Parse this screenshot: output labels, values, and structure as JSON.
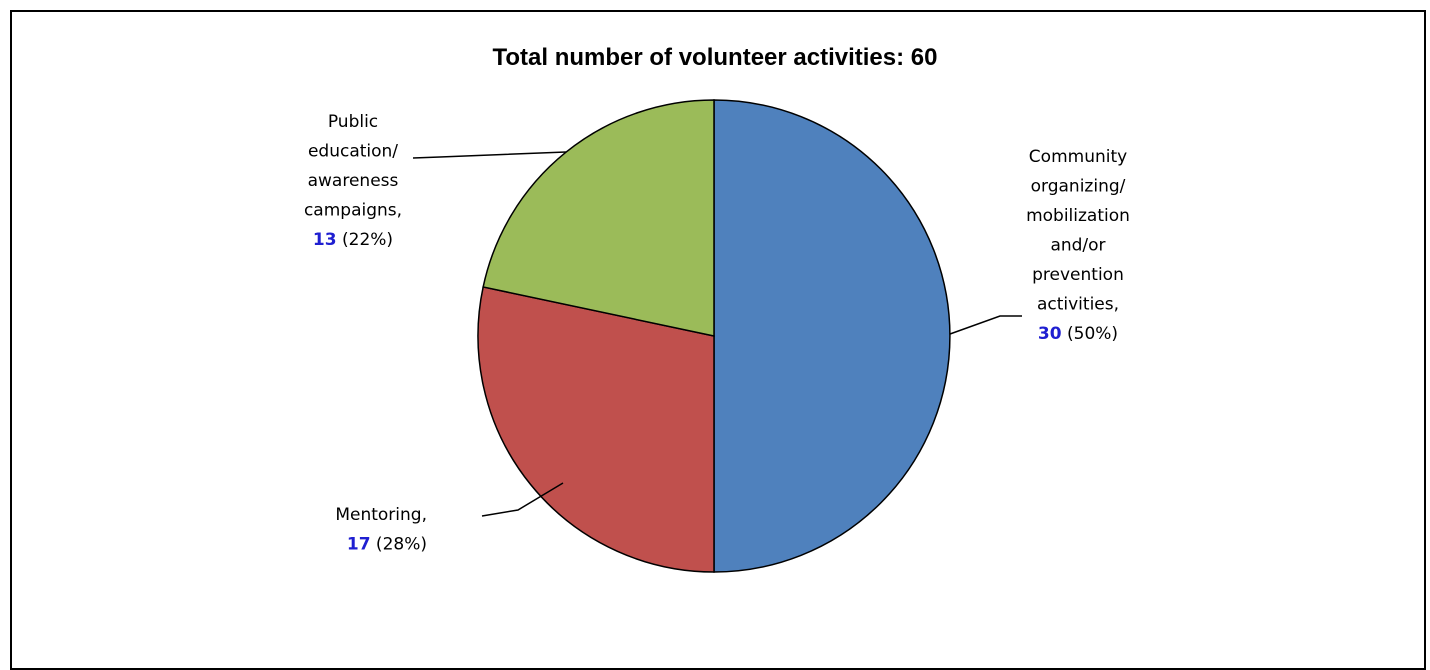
{
  "chart_data": {
    "type": "pie",
    "title": "Total number of volunteer activities: 60",
    "slices": [
      {
        "label_lines": [
          "Community",
          "organizing/",
          "mobilization",
          "and/or",
          "prevention",
          "activities,"
        ],
        "value": 30,
        "percent_text": "(50%)",
        "color": "#4f81bd"
      },
      {
        "label_lines": [
          "Mentoring,"
        ],
        "value": 17,
        "percent_text": "(28%)",
        "color": "#c0504d"
      },
      {
        "label_lines": [
          "Public",
          "education/",
          "awareness",
          "campaigns,"
        ],
        "value": 13,
        "percent_text": "(22%)",
        "color": "#9bbb59"
      }
    ]
  }
}
